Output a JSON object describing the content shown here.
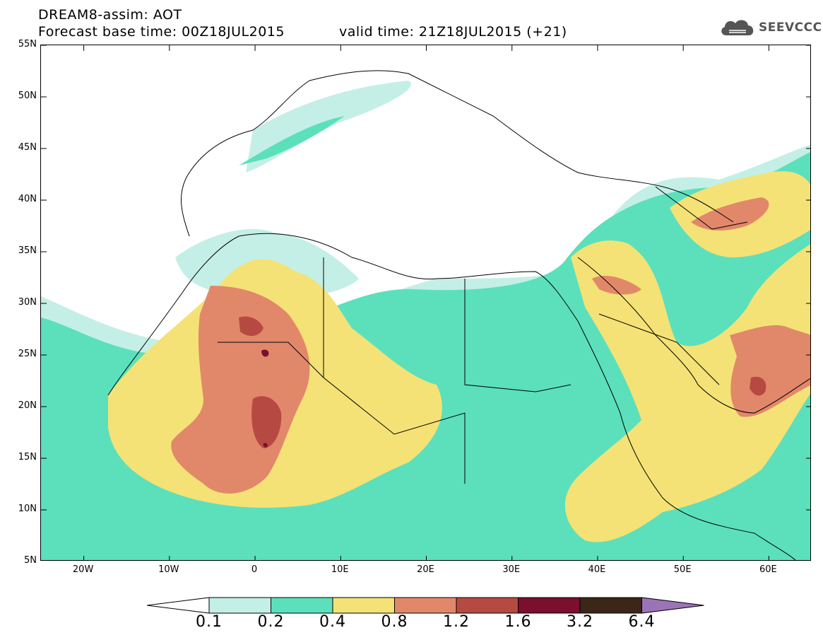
{
  "header": {
    "line1": "DREAM8-assim: AOT",
    "line2": "Forecast base time: 00Z18JUL2015",
    "line3": "valid time: 21Z18JUL2015 (+21)",
    "logo_text": "SEEVCCC"
  },
  "map": {
    "variable": "AOT",
    "lat_range": [
      5,
      55
    ],
    "lon_range": [
      -25,
      65
    ],
    "lat_labels": [
      "55N",
      "50N",
      "45N",
      "40N",
      "35N",
      "30N",
      "25N",
      "20N",
      "15N",
      "10N",
      "5N"
    ],
    "lon_labels": [
      "20W",
      "10W",
      "0",
      "10E",
      "20E",
      "30E",
      "40E",
      "50E",
      "60E"
    ],
    "colors": {
      "c0_1": "#c4efe6",
      "c0_2": "#5be0bb",
      "c0_4": "#f4e276",
      "c0_8": "#e2886a",
      "c1_2": "#b64a43",
      "c1_6": "#7a0f2e",
      "c3_2": "#3b2618",
      "c6_4": "#9b74b8"
    }
  },
  "colorbar": {
    "levels": [
      "0.1",
      "0.2",
      "0.4",
      "0.8",
      "1.2",
      "1.6",
      "3.2",
      "6.4"
    ]
  }
}
